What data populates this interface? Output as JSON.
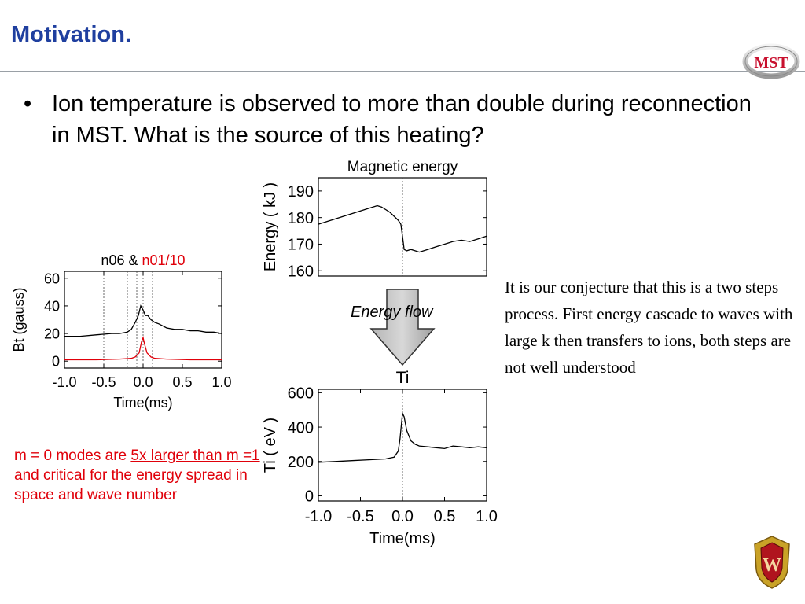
{
  "slide": {
    "title": "Motivation.",
    "bullet_symbol": "•",
    "bullet": "Ion temperature is observed to more than double during reconnection in MST. What is the source of this heating?",
    "side_note": "It is our conjecture that this is a two steps process. First energy cascade to waves with large k then transfers to ions, both steps are not well understood",
    "red_note": {
      "part1": "m = 0 modes are ",
      "underlined": "5x larger than m =1",
      "part2": " and critical for the energy spread in space and wave number"
    },
    "arrow_label": "Energy flow",
    "logo": {
      "text": "MST",
      "color": "#c8102e"
    },
    "crest": {
      "letter": "W",
      "color": "#b0141e"
    }
  },
  "chart_data": [
    {
      "type": "line",
      "title": "Magnetic energy",
      "ylabel": "Energy ( kJ )",
      "xlabel": "",
      "xlim": [
        -1.0,
        1.0
      ],
      "ylim": [
        158,
        195
      ],
      "yticks": [
        160,
        170,
        180,
        190
      ],
      "xticks": [],
      "vlines": [
        0.0
      ],
      "series": [
        {
          "color": "#000000",
          "x": [
            -1.0,
            -0.9,
            -0.8,
            -0.7,
            -0.6,
            -0.5,
            -0.4,
            -0.3,
            -0.25,
            -0.2,
            -0.15,
            -0.1,
            -0.05,
            -0.02,
            0.0,
            0.02,
            0.05,
            0.1,
            0.15,
            0.2,
            0.3,
            0.4,
            0.5,
            0.6,
            0.7,
            0.8,
            0.9,
            1.0
          ],
          "y": [
            177.5,
            178.5,
            179.5,
            180.5,
            181.5,
            182.5,
            183.5,
            184.5,
            184.0,
            183.0,
            182.0,
            180.5,
            179.0,
            177.5,
            173.0,
            168.0,
            167.5,
            168.0,
            167.5,
            167.0,
            168.0,
            169.0,
            170.0,
            171.0,
            171.5,
            171.0,
            172.0,
            173.0
          ]
        }
      ]
    },
    {
      "type": "line",
      "title": "Ti",
      "ylabel": "Ti ( eV )",
      "xlabel": "Time(ms)",
      "xlim": [
        -1.0,
        1.0
      ],
      "ylim": [
        -30,
        620
      ],
      "yticks": [
        0,
        200,
        400,
        600
      ],
      "xticks": [
        "-1.0",
        "-0.5",
        "0.0",
        "0.5",
        "1.0"
      ],
      "vlines": [
        0.0
      ],
      "series": [
        {
          "color": "#000000",
          "x": [
            -1.0,
            -0.8,
            -0.6,
            -0.4,
            -0.2,
            -0.1,
            -0.05,
            -0.03,
            -0.01,
            0.0,
            0.02,
            0.05,
            0.1,
            0.15,
            0.2,
            0.3,
            0.4,
            0.5,
            0.6,
            0.7,
            0.8,
            0.9,
            1.0
          ],
          "y": [
            195,
            200,
            205,
            210,
            215,
            225,
            260,
            330,
            430,
            480,
            460,
            380,
            320,
            300,
            290,
            285,
            280,
            275,
            290,
            285,
            280,
            285,
            280
          ]
        }
      ]
    },
    {
      "type": "line",
      "title_parts": [
        "n06 & ",
        "n01/10"
      ],
      "title_colors": [
        "#000000",
        "#e0000a"
      ],
      "ylabel": "Bt (gauss)",
      "xlabel": "Time(ms)",
      "xlim": [
        -1.0,
        1.0
      ],
      "ylim": [
        -5,
        65
      ],
      "yticks": [
        0,
        20,
        40,
        60
      ],
      "xticks": [
        "-1.0",
        "-0.5",
        "0.0",
        "0.5",
        "1.0"
      ],
      "vlines": [
        -0.5,
        -0.2,
        -0.08,
        0.0,
        0.12
      ],
      "series": [
        {
          "name": "n06",
          "color": "#000000",
          "x": [
            -1.0,
            -0.8,
            -0.6,
            -0.4,
            -0.3,
            -0.2,
            -0.15,
            -0.1,
            -0.06,
            -0.03,
            0.0,
            0.03,
            0.06,
            0.1,
            0.15,
            0.2,
            0.3,
            0.4,
            0.5,
            0.6,
            0.7,
            0.8,
            0.9,
            1.0
          ],
          "y": [
            18,
            18,
            19,
            20,
            20,
            21,
            23,
            28,
            33,
            40,
            37,
            33,
            33,
            30,
            28,
            27,
            24,
            23,
            23,
            22,
            22,
            21,
            21,
            20
          ]
        },
        {
          "name": "n01/10",
          "color": "#e0000a",
          "x": [
            -1.0,
            -0.6,
            -0.3,
            -0.15,
            -0.1,
            -0.05,
            -0.02,
            0.0,
            0.02,
            0.05,
            0.1,
            0.15,
            0.3,
            0.6,
            1.0
          ],
          "y": [
            1,
            1,
            1.5,
            2,
            3,
            6,
            14,
            17,
            12,
            6,
            3,
            2,
            1.5,
            1,
            1
          ]
        }
      ]
    }
  ]
}
